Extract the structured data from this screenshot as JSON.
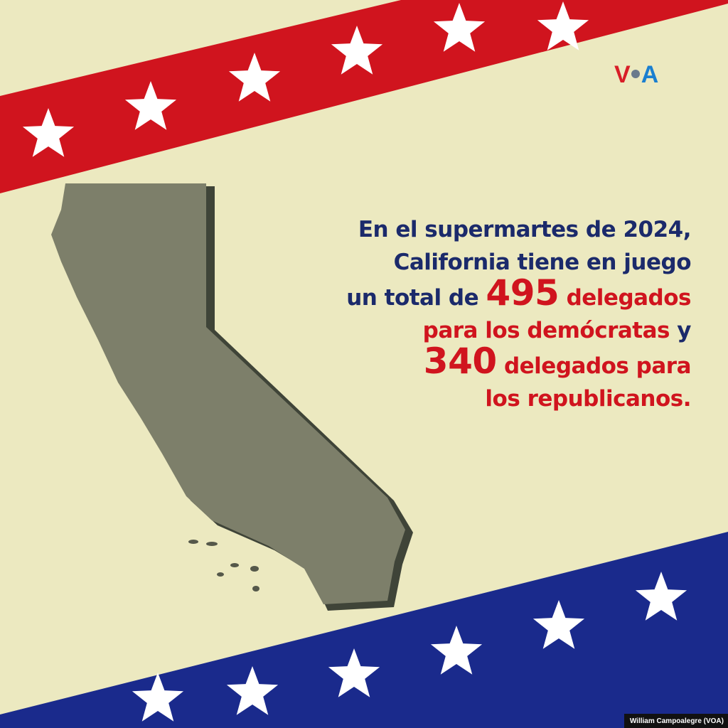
{
  "logo": {
    "text": "VOA",
    "v": "V",
    "a": "A"
  },
  "headline": {
    "line1": "En el supermartes de 2024,",
    "line2": "California tiene en juego",
    "line3_pre": "un total de ",
    "line3_num": "495",
    "line3_post": " delegados",
    "line4_red": "para los demócratas",
    "line4_post": " y",
    "line5_num": "340",
    "line5_post": " delegados para",
    "line6": "los republicanos."
  },
  "credit": "William Campoalegre (VOA)",
  "colors": {
    "background": "#ece9c0",
    "red": "#d0141e",
    "navy": "#1b2a6b",
    "blue_band": "#1a2a8c",
    "map": "#7d7f6a"
  }
}
